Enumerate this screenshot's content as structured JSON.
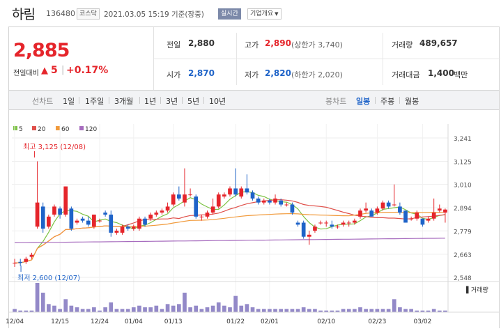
{
  "header": {
    "stock_name": "하림",
    "stock_code": "136480",
    "market": "코스닥",
    "timestamp": "2021.03.05 15:19 기준(장중)",
    "realtime": "실시간",
    "company_button": "기업개요"
  },
  "summary": {
    "current_price": "2,885",
    "change_label": "전일대비",
    "change_value": "5",
    "change_pct": "+0.17%",
    "prev_close_label": "전일",
    "prev_close": "2,880",
    "high_label": "고가",
    "high": "2,890",
    "upper_limit": "(상한가 3,740)",
    "volume_label": "거래량",
    "volume": "489,657",
    "open_label": "시가",
    "open": "2,870",
    "low_label": "저가",
    "low": "2,820",
    "lower_limit": "(하한가 2,020)",
    "amount_label": "거래대금",
    "amount": "1,400",
    "amount_unit": "백만"
  },
  "period_bar": {
    "line_label": "선차트",
    "line_periods": [
      "1일",
      "1주일",
      "3개월",
      "1년",
      "3년",
      "5년",
      "10년"
    ],
    "candle_label": "봉차트",
    "candle_periods": [
      "일봉",
      "주봉",
      "월봉"
    ],
    "active_candle": "일봉"
  },
  "colors": {
    "up": "#e5252b",
    "down": "#1e63c8",
    "ma5": "#7cc243",
    "ma20": "#e0504a",
    "ma60": "#f19a3b",
    "ma120": "#a66bbe",
    "volume": "#9389c8"
  },
  "chart_data": {
    "type": "candlestick",
    "legend": [
      "5",
      "20",
      "60",
      "120"
    ],
    "y_ticks": [
      "3,241",
      "3,125",
      "3,010",
      "2,894",
      "2,779",
      "2,663",
      "2,548"
    ],
    "y_range": [
      2548,
      3241
    ],
    "x_ticks": [
      "12/04",
      "12/15",
      "12/24",
      "01/04",
      "01/13",
      "01/22",
      "02/01",
      "02/10",
      "02/23",
      "03/02"
    ],
    "annotations": {
      "high": "최고 3,125 (12/08)",
      "low": "최저 2,600 (12/07)"
    },
    "volume_label": "거래량",
    "candles": [
      [
        2620,
        2620,
        2600,
        2640
      ],
      [
        2625,
        2620,
        2605,
        2640
      ],
      [
        2625,
        2640,
        2615,
        2650
      ],
      [
        2650,
        2660,
        2640,
        2670
      ],
      [
        2800,
        2920,
        2790,
        3125
      ],
      [
        2900,
        2790,
        2770,
        2920
      ],
      [
        2800,
        2850,
        2790,
        2860
      ],
      [
        2860,
        2900,
        2850,
        2910
      ],
      [
        2890,
        2860,
        2840,
        2900
      ],
      [
        2860,
        3000,
        2850,
        3000
      ],
      [
        2890,
        2790,
        2780,
        2900
      ],
      [
        2820,
        2830,
        2810,
        2840
      ],
      [
        2840,
        2830,
        2820,
        2850
      ],
      [
        2830,
        2810,
        2800,
        2850
      ],
      [
        2800,
        2860,
        2790,
        2860
      ],
      [
        2830,
        2830,
        2820,
        2840
      ],
      [
        2870,
        2860,
        2850,
        2880
      ],
      [
        2860,
        2770,
        2750,
        2880
      ],
      [
        2770,
        2780,
        2760,
        2790
      ],
      [
        2770,
        2800,
        2760,
        2810
      ],
      [
        2800,
        2790,
        2780,
        2810
      ],
      [
        2790,
        2800,
        2780,
        2810
      ],
      [
        2790,
        2840,
        2780,
        2850
      ],
      [
        2840,
        2810,
        2800,
        2850
      ],
      [
        2840,
        2860,
        2830,
        2870
      ],
      [
        2860,
        2870,
        2850,
        2880
      ],
      [
        2870,
        2880,
        2860,
        2890
      ],
      [
        2880,
        2900,
        2870,
        2920
      ],
      [
        2910,
        2960,
        2900,
        2970
      ],
      [
        2960,
        2940,
        2930,
        3000
      ],
      [
        2920,
        2960,
        2900,
        3090
      ],
      [
        2960,
        2960,
        2950,
        2990
      ],
      [
        2950,
        2850,
        2840,
        2960
      ],
      [
        2850,
        2850,
        2830,
        2860
      ],
      [
        2850,
        2870,
        2840,
        2880
      ],
      [
        2870,
        2900,
        2860,
        2940
      ],
      [
        2900,
        2960,
        2890,
        2970
      ],
      [
        2950,
        2960,
        2940,
        2970
      ],
      [
        2960,
        2990,
        2950,
        3000
      ],
      [
        2990,
        2960,
        2950,
        3090
      ],
      [
        2950,
        2990,
        2940,
        3000
      ],
      [
        2990,
        2970,
        2960,
        3060
      ],
      [
        2970,
        2940,
        2930,
        2980
      ],
      [
        2940,
        2920,
        2910,
        2950
      ],
      [
        2920,
        2930,
        2910,
        2940
      ],
      [
        2930,
        2920,
        2910,
        2940
      ],
      [
        2920,
        2940,
        2910,
        2960
      ],
      [
        2930,
        2910,
        2900,
        2940
      ],
      [
        2910,
        2910,
        2900,
        2920
      ],
      [
        2910,
        2870,
        2860,
        2920
      ],
      [
        2820,
        2810,
        2800,
        2830
      ],
      [
        2820,
        2750,
        2740,
        2830
      ],
      [
        2750,
        2760,
        2710,
        2780
      ],
      [
        2780,
        2800,
        2770,
        2810
      ],
      [
        2820,
        2820,
        2810,
        2830
      ],
      [
        2820,
        2820,
        2800,
        2830
      ],
      [
        2810,
        2800,
        2790,
        2830
      ],
      [
        2800,
        2800,
        2790,
        2810
      ],
      [
        2810,
        2820,
        2800,
        2830
      ],
      [
        2820,
        2820,
        2800,
        2830
      ],
      [
        2820,
        2830,
        2810,
        2840
      ],
      [
        2850,
        2880,
        2840,
        2890
      ],
      [
        2880,
        2890,
        2870,
        2920
      ],
      [
        2880,
        2850,
        2850,
        2890
      ],
      [
        2870,
        2890,
        2860,
        2900
      ],
      [
        2890,
        2920,
        2880,
        2930
      ],
      [
        2920,
        2900,
        2890,
        2930
      ],
      [
        2910,
        2910,
        2900,
        3010
      ],
      [
        2900,
        2870,
        2860,
        2920
      ],
      [
        2880,
        2820,
        2820,
        2880
      ],
      [
        2840,
        2840,
        2830,
        2850
      ],
      [
        2840,
        2870,
        2830,
        2880
      ],
      [
        2840,
        2810,
        2800,
        2840
      ],
      [
        2830,
        2840,
        2820,
        2850
      ],
      [
        2840,
        2870,
        2830,
        2940
      ],
      [
        2880,
        2890,
        2870,
        2910
      ],
      [
        2870,
        2885,
        2820,
        2890
      ]
    ],
    "volumes": [
      2,
      1,
      1,
      1,
      18,
      12,
      5,
      4,
      2,
      8,
      4,
      3,
      2,
      2,
      3,
      1,
      3,
      6,
      2,
      2,
      2,
      3,
      4,
      3,
      3,
      4,
      2,
      5,
      4,
      5,
      12,
      3,
      4,
      2,
      3,
      4,
      6,
      4,
      3,
      10,
      4,
      5,
      3,
      2,
      2,
      2,
      2,
      2,
      2,
      2,
      2,
      3,
      2,
      2,
      1,
      1,
      1,
      1,
      2,
      2,
      2,
      3,
      2,
      2,
      2,
      2,
      2,
      8,
      3,
      2,
      2,
      1,
      1,
      1,
      2,
      1,
      1
    ]
  }
}
